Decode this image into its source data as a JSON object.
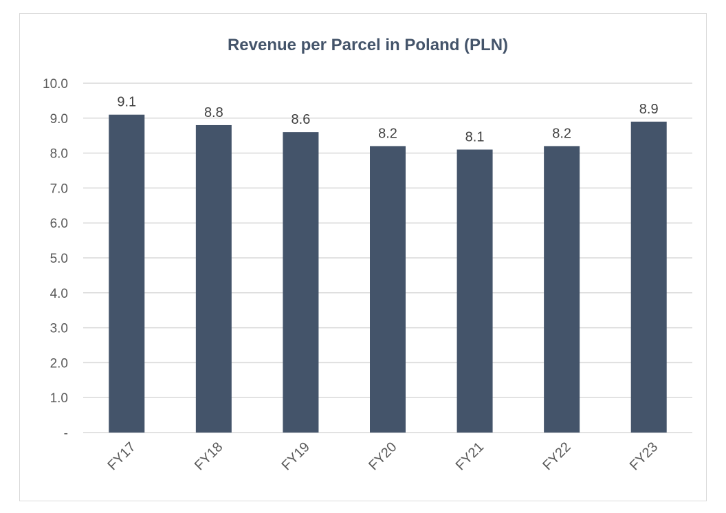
{
  "chart_data": {
    "type": "bar",
    "title": "Revenue per Parcel in Poland (PLN)",
    "categories": [
      "FY17",
      "FY18",
      "FY19",
      "FY20",
      "FY21",
      "FY22",
      "FY23"
    ],
    "values": [
      9.1,
      8.8,
      8.6,
      8.2,
      8.1,
      8.2,
      8.9
    ],
    "data_labels": [
      "9.1",
      "8.8",
      "8.6",
      "8.2",
      "8.1",
      "8.2",
      "8.9"
    ],
    "yticks": [
      "-",
      "1.0",
      "2.0",
      "3.0",
      "4.0",
      "5.0",
      "6.0",
      "7.0",
      "8.0",
      "9.0",
      "10.0"
    ],
    "ylim": [
      0,
      10
    ],
    "xlabel": "",
    "ylabel": "",
    "grid": true,
    "legend": "none",
    "colors": {
      "bar": "#44546a",
      "grid": "#d9d9d9",
      "title": "#44546a"
    }
  }
}
